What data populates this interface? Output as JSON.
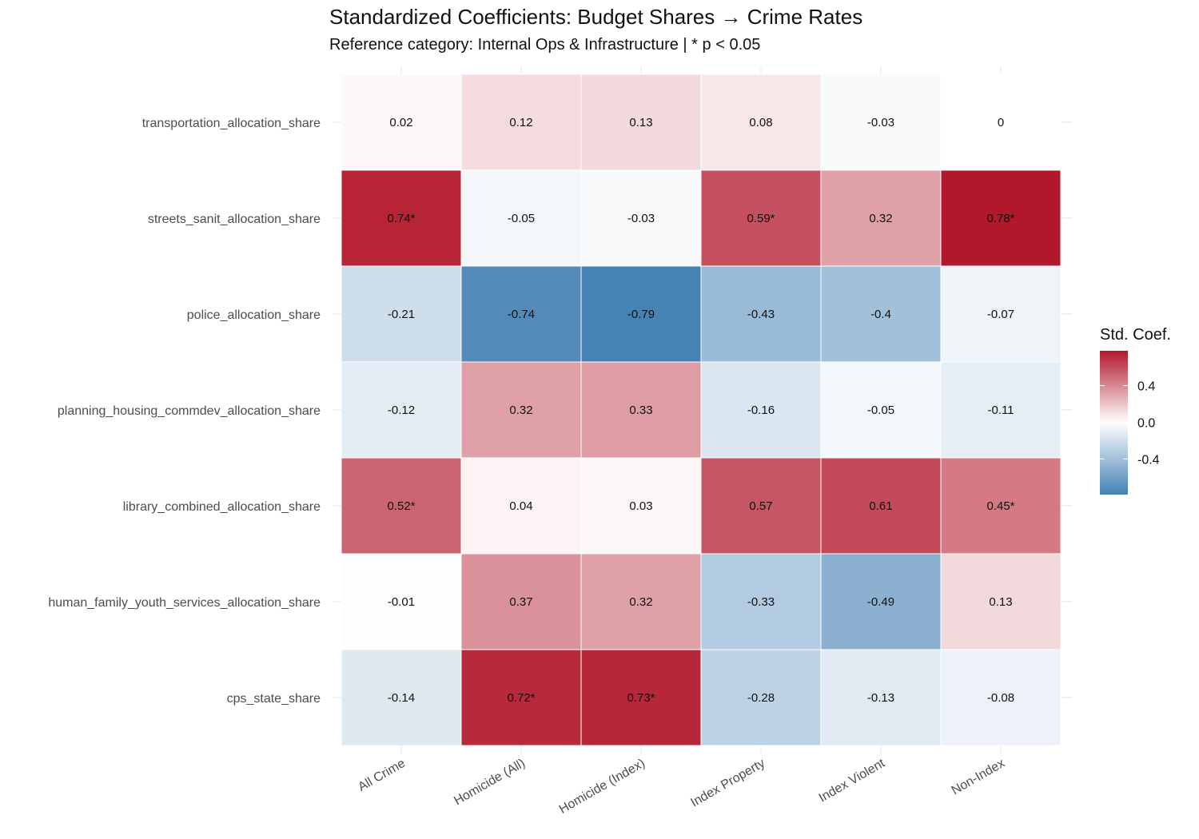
{
  "chart_data": {
    "type": "heatmap",
    "title": "Standardized Coefficients: Budget Shares → Crime Rates",
    "subtitle": "Reference category: Internal Ops & Infrastructure | * p < 0.05",
    "xlabel": "",
    "ylabel": "",
    "x_categories": [
      "All Crime",
      "Homicide (All)",
      "Homicide (Index)",
      "Index Property",
      "Index Violent",
      "Non-Index"
    ],
    "y_categories": [
      "transportation_allocation_share",
      "streets_sanit_allocation_share",
      "police_allocation_share",
      "planning_housing_commdev_allocation_share",
      "library_combined_allocation_share",
      "human_family_youth_services_allocation_share",
      "cps_state_share"
    ],
    "values": [
      [
        0.02,
        0.12,
        0.13,
        0.08,
        -0.03,
        0
      ],
      [
        0.74,
        -0.05,
        -0.03,
        0.59,
        0.32,
        0.78
      ],
      [
        -0.21,
        -0.74,
        -0.79,
        -0.43,
        -0.4,
        -0.07
      ],
      [
        -0.12,
        0.32,
        0.33,
        -0.16,
        -0.05,
        -0.11
      ],
      [
        0.52,
        0.04,
        0.03,
        0.57,
        0.61,
        0.45
      ],
      [
        -0.01,
        0.37,
        0.32,
        -0.33,
        -0.49,
        0.13
      ],
      [
        -0.14,
        0.72,
        0.73,
        -0.28,
        -0.13,
        -0.08
      ]
    ],
    "labels": [
      [
        "0.02",
        "0.12",
        "0.13",
        "0.08",
        "-0.03",
        "0"
      ],
      [
        "0.74*",
        "-0.05",
        "-0.03",
        "0.59*",
        "0.32",
        "0.78*"
      ],
      [
        "-0.21",
        "-0.74",
        "-0.79",
        "-0.43",
        "-0.4",
        "-0.07"
      ],
      [
        "-0.12",
        "0.32",
        "0.33",
        "-0.16",
        "-0.05",
        "-0.11"
      ],
      [
        "0.52*",
        "0.04",
        "0.03",
        "0.57",
        "0.61",
        "0.45*"
      ],
      [
        "-0.01",
        "0.37",
        "0.32",
        "-0.33",
        "-0.49",
        "0.13"
      ],
      [
        "-0.14",
        "0.72*",
        "0.73*",
        "-0.28",
        "-0.13",
        "-0.08"
      ]
    ],
    "legend": {
      "title": "Std. Coef.",
      "ticks": [
        0.4,
        0.0,
        -0.4
      ],
      "tick_labels": [
        "0.4",
        "0.0",
        "-0.4"
      ],
      "range": [
        -0.79,
        0.78
      ],
      "placement": "right"
    },
    "colors": {
      "low": "#4682b4",
      "mid": "#ffffff",
      "high": "#b2182b"
    },
    "grid": true
  }
}
